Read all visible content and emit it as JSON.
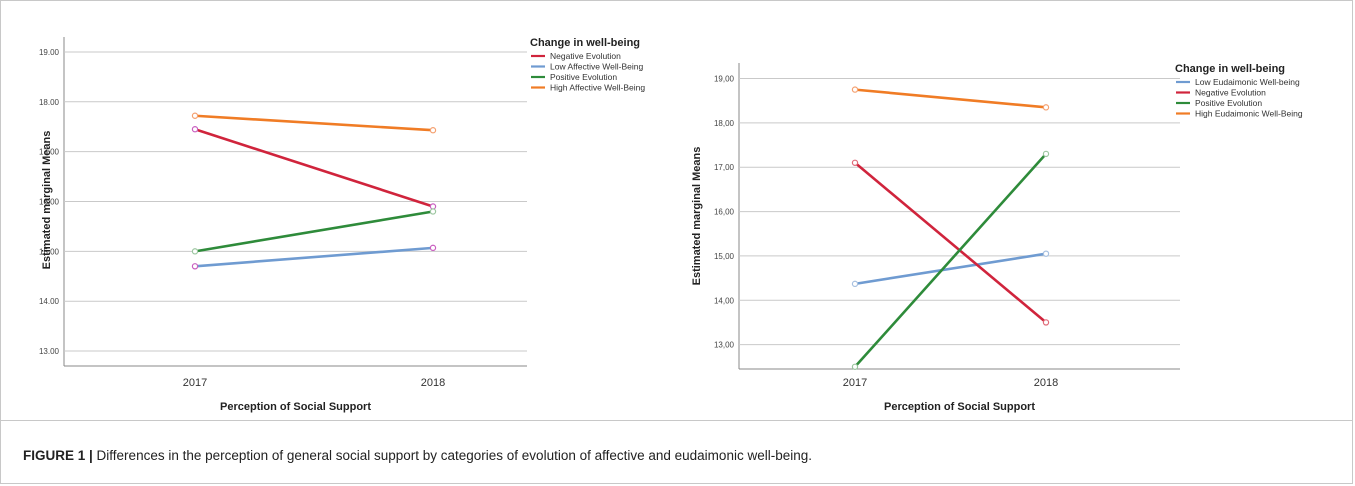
{
  "chart_data": [
    {
      "type": "line",
      "xlabel": "Perception of Social Support",
      "ylabel": "Estimated marginal Means",
      "categories": [
        "2017",
        "2018"
      ],
      "ylim": [
        12.7,
        19.3
      ],
      "yticks": [
        13.0,
        14.0,
        15.0,
        16.0,
        17.0,
        18.0,
        19.0
      ],
      "ytick_labels": [
        "13.00",
        "14.00",
        "15.00",
        "16.00",
        "17.00",
        "18.00",
        "19.00"
      ],
      "grid": true,
      "legend_title": "Change in well-being",
      "legend_position": "top-right",
      "series": [
        {
          "name": "Negative Evolution",
          "values": [
            17.45,
            15.9
          ],
          "color": "#d0243c",
          "marker_color": "#c95ec0"
        },
        {
          "name": "Low Affective Well-Being",
          "values": [
            14.7,
            15.07
          ],
          "color": "#6f9bd1",
          "marker_color": "#c95ec0"
        },
        {
          "name": "Positive Evolution",
          "values": [
            15.0,
            15.8
          ],
          "color": "#2e8b3a",
          "marker_color": "#9cc6a0"
        },
        {
          "name": "High Affective Well-Being",
          "values": [
            17.72,
            17.43
          ],
          "color": "#f07c25",
          "marker_color": "#f4a070"
        }
      ]
    },
    {
      "type": "line",
      "xlabel": "Perception of Social Support",
      "ylabel": "Estimated marginal Means",
      "categories": [
        "2017",
        "2018"
      ],
      "ylim": [
        12.45,
        19.35
      ],
      "yticks": [
        13.0,
        14.0,
        15.0,
        16.0,
        17.0,
        18.0,
        19.0
      ],
      "ytick_labels": [
        "13,00",
        "14,00",
        "15,00",
        "16,00",
        "17,00",
        "18,00",
        "19,00"
      ],
      "grid": true,
      "legend_title": "Change in well-being",
      "legend_position": "top-right",
      "series": [
        {
          "name": "Low Eudaimonic Well-being",
          "values": [
            14.37,
            15.05
          ],
          "color": "#6f9bd1",
          "marker_color": "#a7c0e0"
        },
        {
          "name": "Negative Evolution",
          "values": [
            17.1,
            13.5
          ],
          "color": "#d0243c",
          "marker_color": "#e06a78"
        },
        {
          "name": "Positive Evolution",
          "values": [
            12.5,
            17.3
          ],
          "color": "#2e8b3a",
          "marker_color": "#9cc6a0"
        },
        {
          "name": "High Eudaimonic Well-Being",
          "values": [
            18.75,
            18.35
          ],
          "color": "#f07c25",
          "marker_color": "#f4a070"
        }
      ]
    }
  ],
  "caption": {
    "label": "FIGURE 1 |",
    "text": " Differences in the perception of general social support by categories of evolution of affective and eudaimonic well-being."
  }
}
